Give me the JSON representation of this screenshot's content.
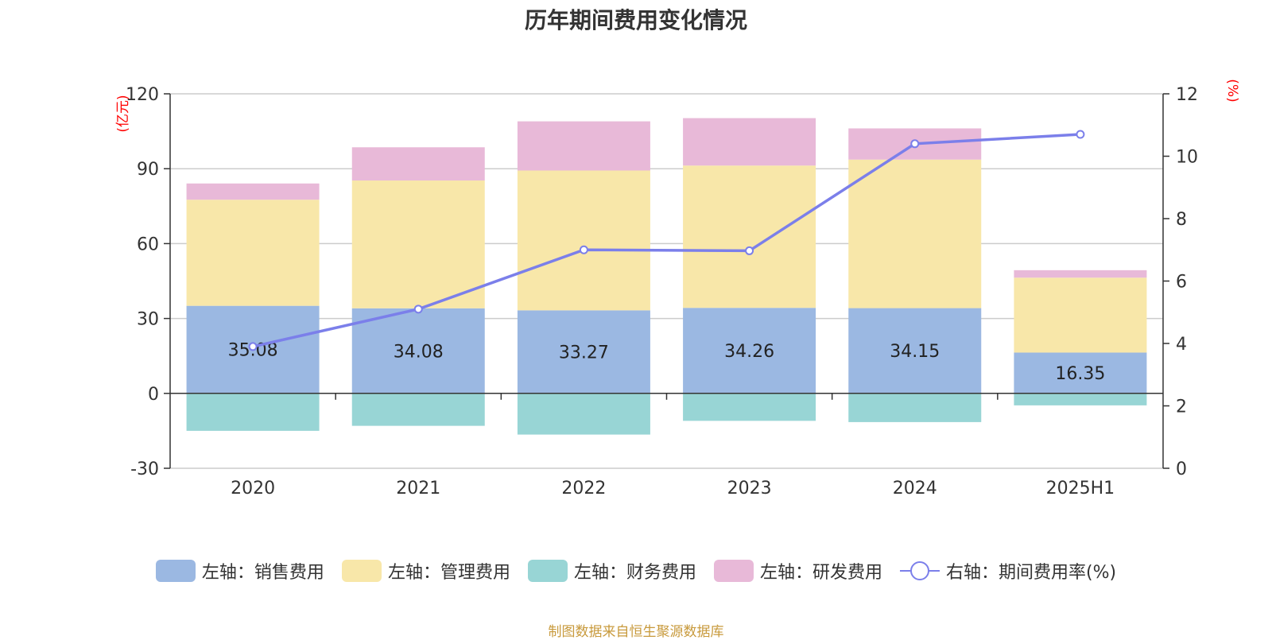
{
  "title": "历年期间费用变化情况",
  "source_note": "制图数据来自恒生聚源数据库",
  "colors": {
    "sales": "#9bb8e2",
    "admin": "#f8e7a9",
    "finance": "#98d5d5",
    "rnd": "#e8b9d8",
    "rate_line": "#7b7fea",
    "unit_text": "#ff0000",
    "axis": "#333333",
    "grid": "#cccccc"
  },
  "legend": [
    {
      "label": "左轴：销售费用",
      "color": "#9bb8e2",
      "kind": "bar"
    },
    {
      "label": "左轴：管理费用",
      "color": "#f8e7a9",
      "kind": "bar"
    },
    {
      "label": "左轴：财务费用",
      "color": "#98d5d5",
      "kind": "bar"
    },
    {
      "label": "左轴：研发费用",
      "color": "#e8b9d8",
      "kind": "bar"
    },
    {
      "label": "右轴：期间费用率(%)",
      "color": "#7b7fea",
      "kind": "line"
    }
  ],
  "chart_data": {
    "type": "bar",
    "stacked": true,
    "title": "历年期间费用变化情况",
    "categories": [
      "2020",
      "2021",
      "2022",
      "2023",
      "2024",
      "2025H1"
    ],
    "left_axis": {
      "unit": "(亿元)",
      "ylim": [
        -30,
        120
      ],
      "ticks": [
        -30,
        0,
        30,
        60,
        90,
        120
      ]
    },
    "right_axis": {
      "unit": "(%)",
      "ylim": [
        0,
        12
      ],
      "ticks": [
        0,
        2,
        4,
        6,
        8,
        10,
        12
      ]
    },
    "grid": true,
    "legend_position": "bottom",
    "series": [
      {
        "name": "左轴：销售费用",
        "axis": "left",
        "type": "bar",
        "values": [
          35.08,
          34.08,
          33.27,
          34.26,
          34.15,
          16.35
        ],
        "show_labels": true
      },
      {
        "name": "左轴：管理费用",
        "axis": "left",
        "type": "bar",
        "values": [
          42.5,
          51.2,
          56.0,
          57.0,
          59.5,
          30.0
        ]
      },
      {
        "name": "左轴：财务费用",
        "axis": "left",
        "type": "bar",
        "values": [
          -15.0,
          -13.0,
          -16.5,
          -11.0,
          -11.5,
          -4.8
        ]
      },
      {
        "name": "左轴：研发费用",
        "axis": "left",
        "type": "bar",
        "values": [
          6.5,
          13.3,
          19.7,
          19.0,
          12.5,
          3.0
        ]
      },
      {
        "name": "右轴：期间费用率(%)",
        "axis": "right",
        "type": "line",
        "values": [
          3.9,
          5.1,
          7.0,
          6.97,
          10.4,
          10.7
        ]
      }
    ]
  }
}
